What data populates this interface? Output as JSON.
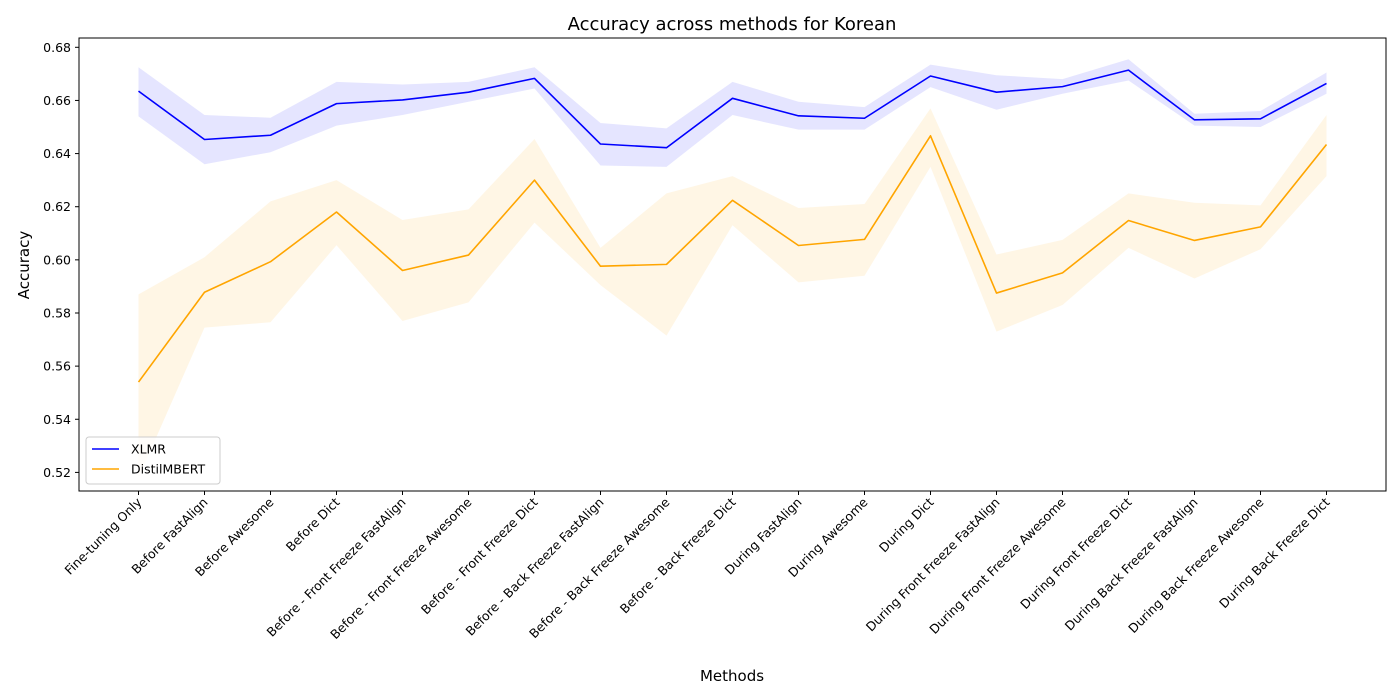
{
  "chart_data": {
    "type": "line",
    "title": "Accuracy across methods for Korean",
    "xlabel": "Methods",
    "ylabel": "Accuracy",
    "ylim": [
      0.513,
      0.6835
    ],
    "yticks": [
      "0.52",
      "0.54",
      "0.56",
      "0.58",
      "0.60",
      "0.62",
      "0.64",
      "0.66",
      "0.68"
    ],
    "grid": false,
    "legend_position": "lower-left",
    "categories": [
      "Fine-tuning Only",
      "Before FastAlign",
      "Before Awesome",
      "Before Dict",
      "Before - Front Freeze FastAlign",
      "Before - Front Freeze Awesome",
      "Before - Front Freeze Dict",
      "Before - Back Freeze FastAlign",
      "Before - Back Freeze Awesome",
      "Before - Back Freeze Dict",
      "During FastAlign",
      "During Awesome",
      "During Dict",
      "During Front Freeze FastAlign",
      "During Front Freeze Awesome",
      "During Front Freeze Dict",
      "During Back Freeze FastAlign",
      "During Back Freeze Awesome",
      "During Back Freeze Dict"
    ],
    "series": [
      {
        "name": "XLMR",
        "color": "#0000ff",
        "band_color": "#0000ff",
        "values": [
          0.6635,
          0.6453,
          0.6469,
          0.6588,
          0.6602,
          0.6631,
          0.6683,
          0.6436,
          0.6422,
          0.6608,
          0.6542,
          0.6533,
          0.6692,
          0.6631,
          0.6652,
          0.6714,
          0.6527,
          0.6531,
          0.6664
        ],
        "lower": [
          0.654,
          0.636,
          0.6405,
          0.6505,
          0.6545,
          0.6595,
          0.6645,
          0.6355,
          0.635,
          0.6545,
          0.649,
          0.649,
          0.665,
          0.6565,
          0.6625,
          0.6675,
          0.6505,
          0.65,
          0.6625
        ],
        "upper": [
          0.6725,
          0.6545,
          0.6535,
          0.667,
          0.666,
          0.667,
          0.6725,
          0.6515,
          0.6495,
          0.667,
          0.6595,
          0.6575,
          0.6735,
          0.6695,
          0.668,
          0.6755,
          0.655,
          0.656,
          0.6705
        ]
      },
      {
        "name": "DistilMBERT",
        "color": "#ffa500",
        "band_color": "#ffa500",
        "values": [
          0.554,
          0.5878,
          0.5993,
          0.618,
          0.596,
          0.6018,
          0.63,
          0.5976,
          0.5983,
          0.6224,
          0.6054,
          0.6077,
          0.6467,
          0.5875,
          0.5951,
          0.6148,
          0.6073,
          0.6124,
          0.6434
        ],
        "lower": [
          0.518,
          0.5745,
          0.5765,
          0.6055,
          0.577,
          0.584,
          0.614,
          0.5905,
          0.5715,
          0.613,
          0.5915,
          0.594,
          0.635,
          0.573,
          0.583,
          0.6045,
          0.593,
          0.604,
          0.6315
        ],
        "upper": [
          0.587,
          0.601,
          0.622,
          0.63,
          0.615,
          0.619,
          0.6455,
          0.6045,
          0.625,
          0.6315,
          0.6195,
          0.621,
          0.657,
          0.602,
          0.6075,
          0.625,
          0.6215,
          0.6205,
          0.6545
        ]
      }
    ]
  }
}
